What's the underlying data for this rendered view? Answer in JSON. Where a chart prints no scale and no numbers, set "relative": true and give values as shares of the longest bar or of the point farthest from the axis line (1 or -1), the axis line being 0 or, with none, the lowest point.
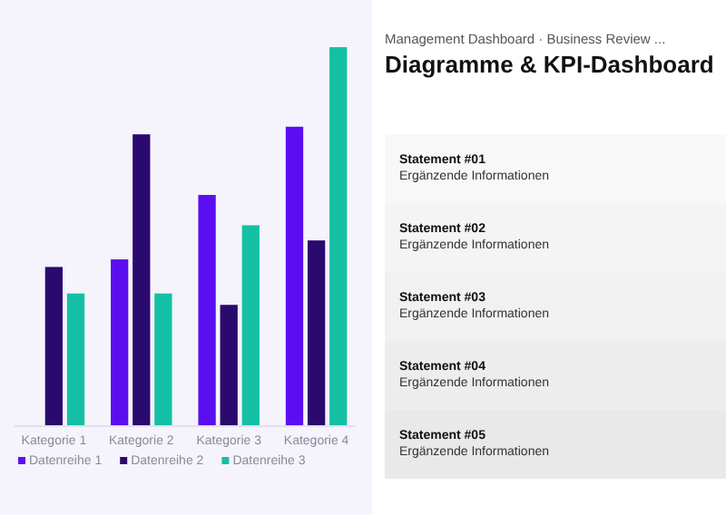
{
  "chart_data": [
    {
      "type": "bar",
      "relative": true,
      "categories": [
        "Kategorie 1",
        "Kategorie 2",
        "Kategorie 3",
        "Kategorie 4"
      ],
      "legend": "bottom",
      "series": [
        {
          "name": "Datenreihe 1",
          "color": "#5b0ff0",
          "values": [
            null,
            0.44,
            0.61,
            0.79
          ]
        },
        {
          "name": "Datenreihe 2",
          "color": "#2a0a6e",
          "values": [
            0.42,
            0.77,
            0.32,
            0.49
          ]
        },
        {
          "name": "Datenreihe 3",
          "color": "#14c0a4",
          "values": [
            0.35,
            0.35,
            0.53,
            1
          ]
        }
      ]
    },
    {
      "type": "other",
      "subtitle": "Management Dashboard · Business Review ...",
      "title": "Diagramme & KPI-Dashboard",
      "annotations": [
        "Statement #01",
        "Ergänzende Informationen",
        "Statement #02",
        "Ergänzende Informationen",
        "Statement #03",
        "Ergänzende Informationen",
        "Statement #04",
        "Ergänzende Informationen",
        "Statement #05",
        "Ergänzende Informationen"
      ]
    }
  ]
}
